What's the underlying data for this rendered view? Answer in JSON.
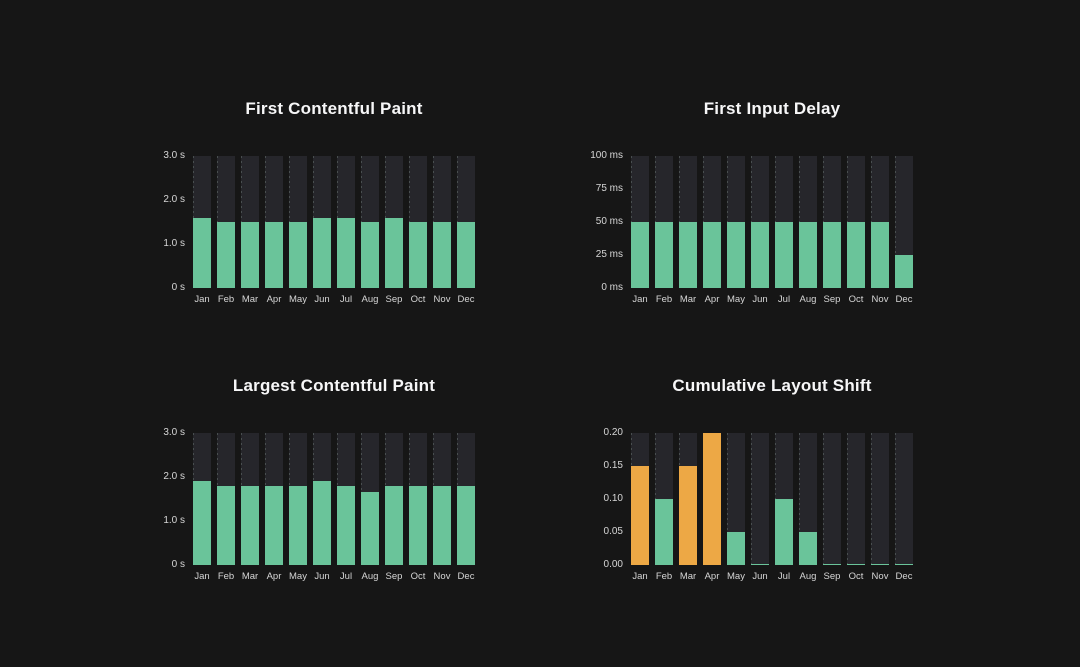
{
  "colors": {
    "green": "#6ac49a",
    "orange": "#eda845",
    "track": "#26262b",
    "background": "#161616",
    "tick_text": "#d6d6d6",
    "title_text": "#f7f7f8"
  },
  "chart_data": [
    {
      "type": "bar",
      "title": "First Contentful Paint",
      "categories": [
        "Jan",
        "Feb",
        "Mar",
        "Apr",
        "May",
        "Jun",
        "Jul",
        "Aug",
        "Sep",
        "Oct",
        "Nov",
        "Dec"
      ],
      "values": [
        1.6,
        1.5,
        1.5,
        1.5,
        1.5,
        1.6,
        1.6,
        1.5,
        1.6,
        1.5,
        1.5,
        1.5
      ],
      "unit": "s",
      "ylim": [
        0,
        3.0
      ],
      "yticks": [
        "3.0 s",
        "2.0 s",
        "1.0 s",
        "0 s"
      ],
      "color": "green",
      "bar_colors": null,
      "grid": false,
      "legend": false
    },
    {
      "type": "bar",
      "title": "First Input Delay",
      "categories": [
        "Jan",
        "Feb",
        "Mar",
        "Apr",
        "May",
        "Jun",
        "Jul",
        "Aug",
        "Sep",
        "Oct",
        "Nov",
        "Dec"
      ],
      "values": [
        50,
        50,
        50,
        50,
        50,
        50,
        50,
        50,
        50,
        50,
        50,
        25
      ],
      "unit": "ms",
      "ylim": [
        0,
        100
      ],
      "yticks": [
        "100 ms",
        "75 ms",
        "50 ms",
        "25 ms",
        "0 ms"
      ],
      "color": "green",
      "bar_colors": null,
      "grid": false,
      "legend": false
    },
    {
      "type": "bar",
      "title": "Largest Contentful Paint",
      "categories": [
        "Jan",
        "Feb",
        "Mar",
        "Apr",
        "May",
        "Jun",
        "Jul",
        "Aug",
        "Sep",
        "Oct",
        "Nov",
        "Dec"
      ],
      "values": [
        1.9,
        1.8,
        1.8,
        1.8,
        1.8,
        1.9,
        1.8,
        1.65,
        1.8,
        1.8,
        1.8,
        1.8
      ],
      "unit": "s",
      "ylim": [
        0,
        3.0
      ],
      "yticks": [
        "3.0 s",
        "2.0 s",
        "1.0 s",
        "0 s"
      ],
      "color": "green",
      "bar_colors": null,
      "grid": false,
      "legend": false
    },
    {
      "type": "bar",
      "title": "Cumulative Layout Shift",
      "categories": [
        "Jan",
        "Feb",
        "Mar",
        "Apr",
        "May",
        "Jun",
        "Jul",
        "Aug",
        "Sep",
        "Oct",
        "Nov",
        "Dec"
      ],
      "values": [
        0.15,
        0.1,
        0.15,
        0.2,
        0.05,
        0,
        0.1,
        0.05,
        0,
        0,
        0,
        0
      ],
      "unit": "",
      "ylim": [
        0,
        0.2
      ],
      "yticks": [
        "0.20",
        "0.15",
        "0.10",
        "0.05",
        "0.00"
      ],
      "color": "green",
      "bar_colors": [
        "orange",
        "green",
        "orange",
        "orange",
        "green",
        "green",
        "green",
        "green",
        "green",
        "green",
        "green",
        "green"
      ],
      "grid": false,
      "legend": false
    }
  ]
}
